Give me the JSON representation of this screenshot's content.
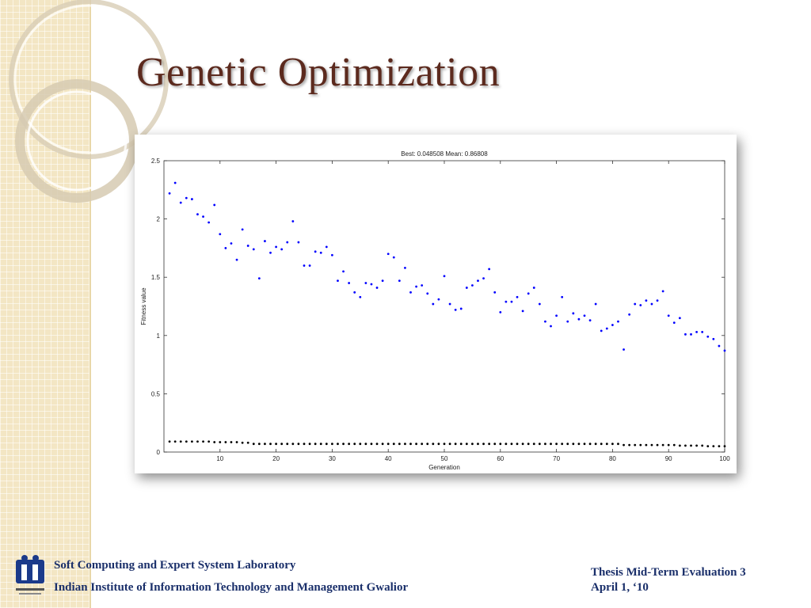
{
  "slide": {
    "title": "Genetic Optimization"
  },
  "footer": {
    "lab": "Soft Computing and Expert System Laboratory",
    "institute": "Indian Institute of Information Technology and Management Gwalior",
    "event": "Thesis Mid-Term Evaluation 3",
    "date": "April 1, ‘10",
    "logo_icon": "iiitm-logo-icon"
  },
  "colors": {
    "title": "#5c2a1e",
    "footer": "#1a2f6a",
    "mean_series": "#0000ff",
    "best_series": "#000000",
    "sidebar": "#f3e6c4"
  },
  "chart_data": {
    "type": "scatter",
    "title": "Best: 0.048508 Mean: 0.86808",
    "xlabel": "Generation",
    "ylabel": "Fitness value",
    "xlim": [
      0,
      100
    ],
    "ylim": [
      0,
      2.5
    ],
    "xticks": [
      10,
      20,
      30,
      40,
      50,
      60,
      70,
      80,
      90,
      100
    ],
    "yticks": [
      0,
      0.5,
      1,
      1.5,
      2,
      2.5
    ],
    "grid": false,
    "series": [
      {
        "color": "#0000ff",
        "x": [
          1,
          2,
          3,
          4,
          5,
          6,
          7,
          8,
          9,
          10,
          11,
          12,
          13,
          14,
          15,
          16,
          17,
          18,
          19,
          20,
          21,
          22,
          23,
          24,
          25,
          26,
          27,
          28,
          29,
          30,
          31,
          32,
          33,
          34,
          35,
          36,
          37,
          38,
          39,
          40,
          41,
          42,
          43,
          44,
          45,
          46,
          47,
          48,
          49,
          50,
          51,
          52,
          53,
          54,
          55,
          56,
          57,
          58,
          59,
          60,
          61,
          62,
          63,
          64,
          65,
          66,
          67,
          68,
          69,
          70,
          71,
          72,
          73,
          74,
          75,
          76,
          77,
          78,
          79,
          80,
          81,
          82,
          83,
          84,
          85,
          86,
          87,
          88,
          89,
          90,
          91,
          92,
          93,
          94,
          95,
          96,
          97,
          98,
          99,
          100
        ],
        "y": [
          2.22,
          2.31,
          2.14,
          2.18,
          2.17,
          2.04,
          2.02,
          1.97,
          2.12,
          1.87,
          1.75,
          1.79,
          1.65,
          1.91,
          1.77,
          1.74,
          1.49,
          1.81,
          1.71,
          1.76,
          1.74,
          1.8,
          1.98,
          1.8,
          1.6,
          1.6,
          1.72,
          1.71,
          1.76,
          1.69,
          1.47,
          1.55,
          1.45,
          1.37,
          1.33,
          1.45,
          1.44,
          1.41,
          1.47,
          1.7,
          1.67,
          1.47,
          1.58,
          1.37,
          1.42,
          1.43,
          1.36,
          1.27,
          1.31,
          1.51,
          1.27,
          1.22,
          1.23,
          1.41,
          1.43,
          1.47,
          1.49,
          1.57,
          1.37,
          1.2,
          1.29,
          1.29,
          1.33,
          1.21,
          1.36,
          1.41,
          1.27,
          1.12,
          1.08,
          1.17,
          1.33,
          1.12,
          1.19,
          1.14,
          1.17,
          1.13,
          1.27,
          1.04,
          1.06,
          1.09,
          1.12,
          0.88,
          1.18,
          1.27,
          1.26,
          1.3,
          1.27,
          1.3,
          1.38,
          1.17,
          1.11,
          1.15,
          1.01,
          1.01,
          1.03,
          1.03,
          0.99,
          0.97,
          0.91,
          0.87
        ]
      },
      {
        "color": "#000000",
        "x": [
          1,
          2,
          3,
          4,
          5,
          6,
          7,
          8,
          9,
          10,
          11,
          12,
          13,
          14,
          15,
          16,
          17,
          18,
          19,
          20,
          21,
          22,
          23,
          24,
          25,
          26,
          27,
          28,
          29,
          30,
          31,
          32,
          33,
          34,
          35,
          36,
          37,
          38,
          39,
          40,
          41,
          42,
          43,
          44,
          45,
          46,
          47,
          48,
          49,
          50,
          51,
          52,
          53,
          54,
          55,
          56,
          57,
          58,
          59,
          60,
          61,
          62,
          63,
          64,
          65,
          66,
          67,
          68,
          69,
          70,
          71,
          72,
          73,
          74,
          75,
          76,
          77,
          78,
          79,
          80,
          81,
          82,
          83,
          84,
          85,
          86,
          87,
          88,
          89,
          90,
          91,
          92,
          93,
          94,
          95,
          96,
          97,
          98,
          99,
          100
        ],
        "y": [
          0.09,
          0.09,
          0.09,
          0.09,
          0.09,
          0.09,
          0.09,
          0.09,
          0.085,
          0.085,
          0.085,
          0.085,
          0.085,
          0.08,
          0.08,
          0.07,
          0.07,
          0.07,
          0.07,
          0.07,
          0.07,
          0.07,
          0.07,
          0.07,
          0.07,
          0.07,
          0.07,
          0.07,
          0.07,
          0.07,
          0.07,
          0.07,
          0.07,
          0.07,
          0.07,
          0.07,
          0.07,
          0.07,
          0.07,
          0.07,
          0.07,
          0.07,
          0.07,
          0.07,
          0.07,
          0.07,
          0.07,
          0.07,
          0.07,
          0.07,
          0.07,
          0.07,
          0.07,
          0.07,
          0.07,
          0.07,
          0.07,
          0.07,
          0.07,
          0.07,
          0.07,
          0.07,
          0.07,
          0.07,
          0.07,
          0.07,
          0.07,
          0.07,
          0.07,
          0.07,
          0.07,
          0.07,
          0.07,
          0.07,
          0.07,
          0.07,
          0.07,
          0.07,
          0.07,
          0.07,
          0.07,
          0.06,
          0.06,
          0.06,
          0.06,
          0.06,
          0.06,
          0.06,
          0.06,
          0.06,
          0.06,
          0.055,
          0.055,
          0.055,
          0.055,
          0.055,
          0.05,
          0.05,
          0.05,
          0.05
        ]
      }
    ]
  }
}
